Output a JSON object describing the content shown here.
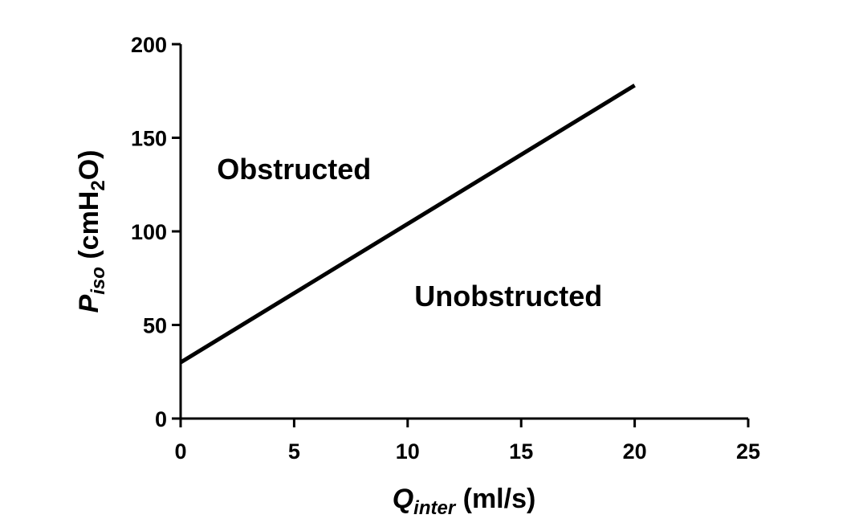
{
  "chart_data": {
    "type": "line",
    "xlabel": {
      "var": "Q",
      "sub": "inter",
      "rest": " (ml/s)"
    },
    "ylabel": {
      "var": "P",
      "sub": "iso",
      "rest_pre": " (cmH",
      "rest_sub": "2",
      "rest_post": "O)"
    },
    "xlim": [
      0,
      25
    ],
    "ylim": [
      0,
      200
    ],
    "xticks": [
      0,
      5,
      10,
      15,
      20,
      25
    ],
    "yticks": [
      0,
      50,
      100,
      150,
      200
    ],
    "grid": false,
    "series": [
      {
        "x": [
          0,
          20
        ],
        "y": [
          30,
          178
        ],
        "color": "#000000"
      }
    ],
    "annotations": [
      {
        "text": "Obstructed",
        "x": 1.6,
        "y": 128
      },
      {
        "text": "Unobstructed",
        "x": 10.3,
        "y": 60
      }
    ]
  }
}
